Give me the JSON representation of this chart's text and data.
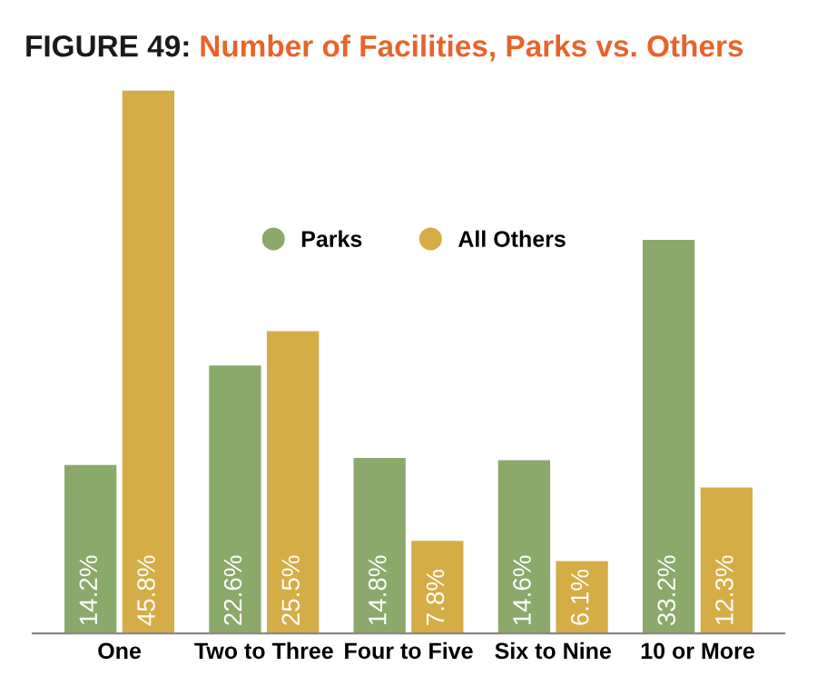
{
  "chart_data": {
    "type": "bar",
    "title": "FIGURE 49: Number of Facilities, Parks vs. Others",
    "categories": [
      "One",
      "Two to Three",
      "Four to Five",
      "Six to Nine",
      "10 or More"
    ],
    "series": [
      {
        "name": "Parks",
        "color": "#8aa96b",
        "values": [
          14.2,
          22.6,
          14.8,
          14.6,
          33.2
        ],
        "value_labels": [
          "14.2%",
          "22.6%",
          "14.8%",
          "14.6%",
          "33.2%"
        ]
      },
      {
        "name": "All Others",
        "color": "#d5ad47",
        "values": [
          45.8,
          25.5,
          7.8,
          6.1,
          12.3
        ],
        "value_labels": [
          "45.8%",
          "25.5%",
          "7.8%",
          "6.1%",
          "12.3%"
        ]
      }
    ],
    "legend": "top",
    "grid": false
  }
}
